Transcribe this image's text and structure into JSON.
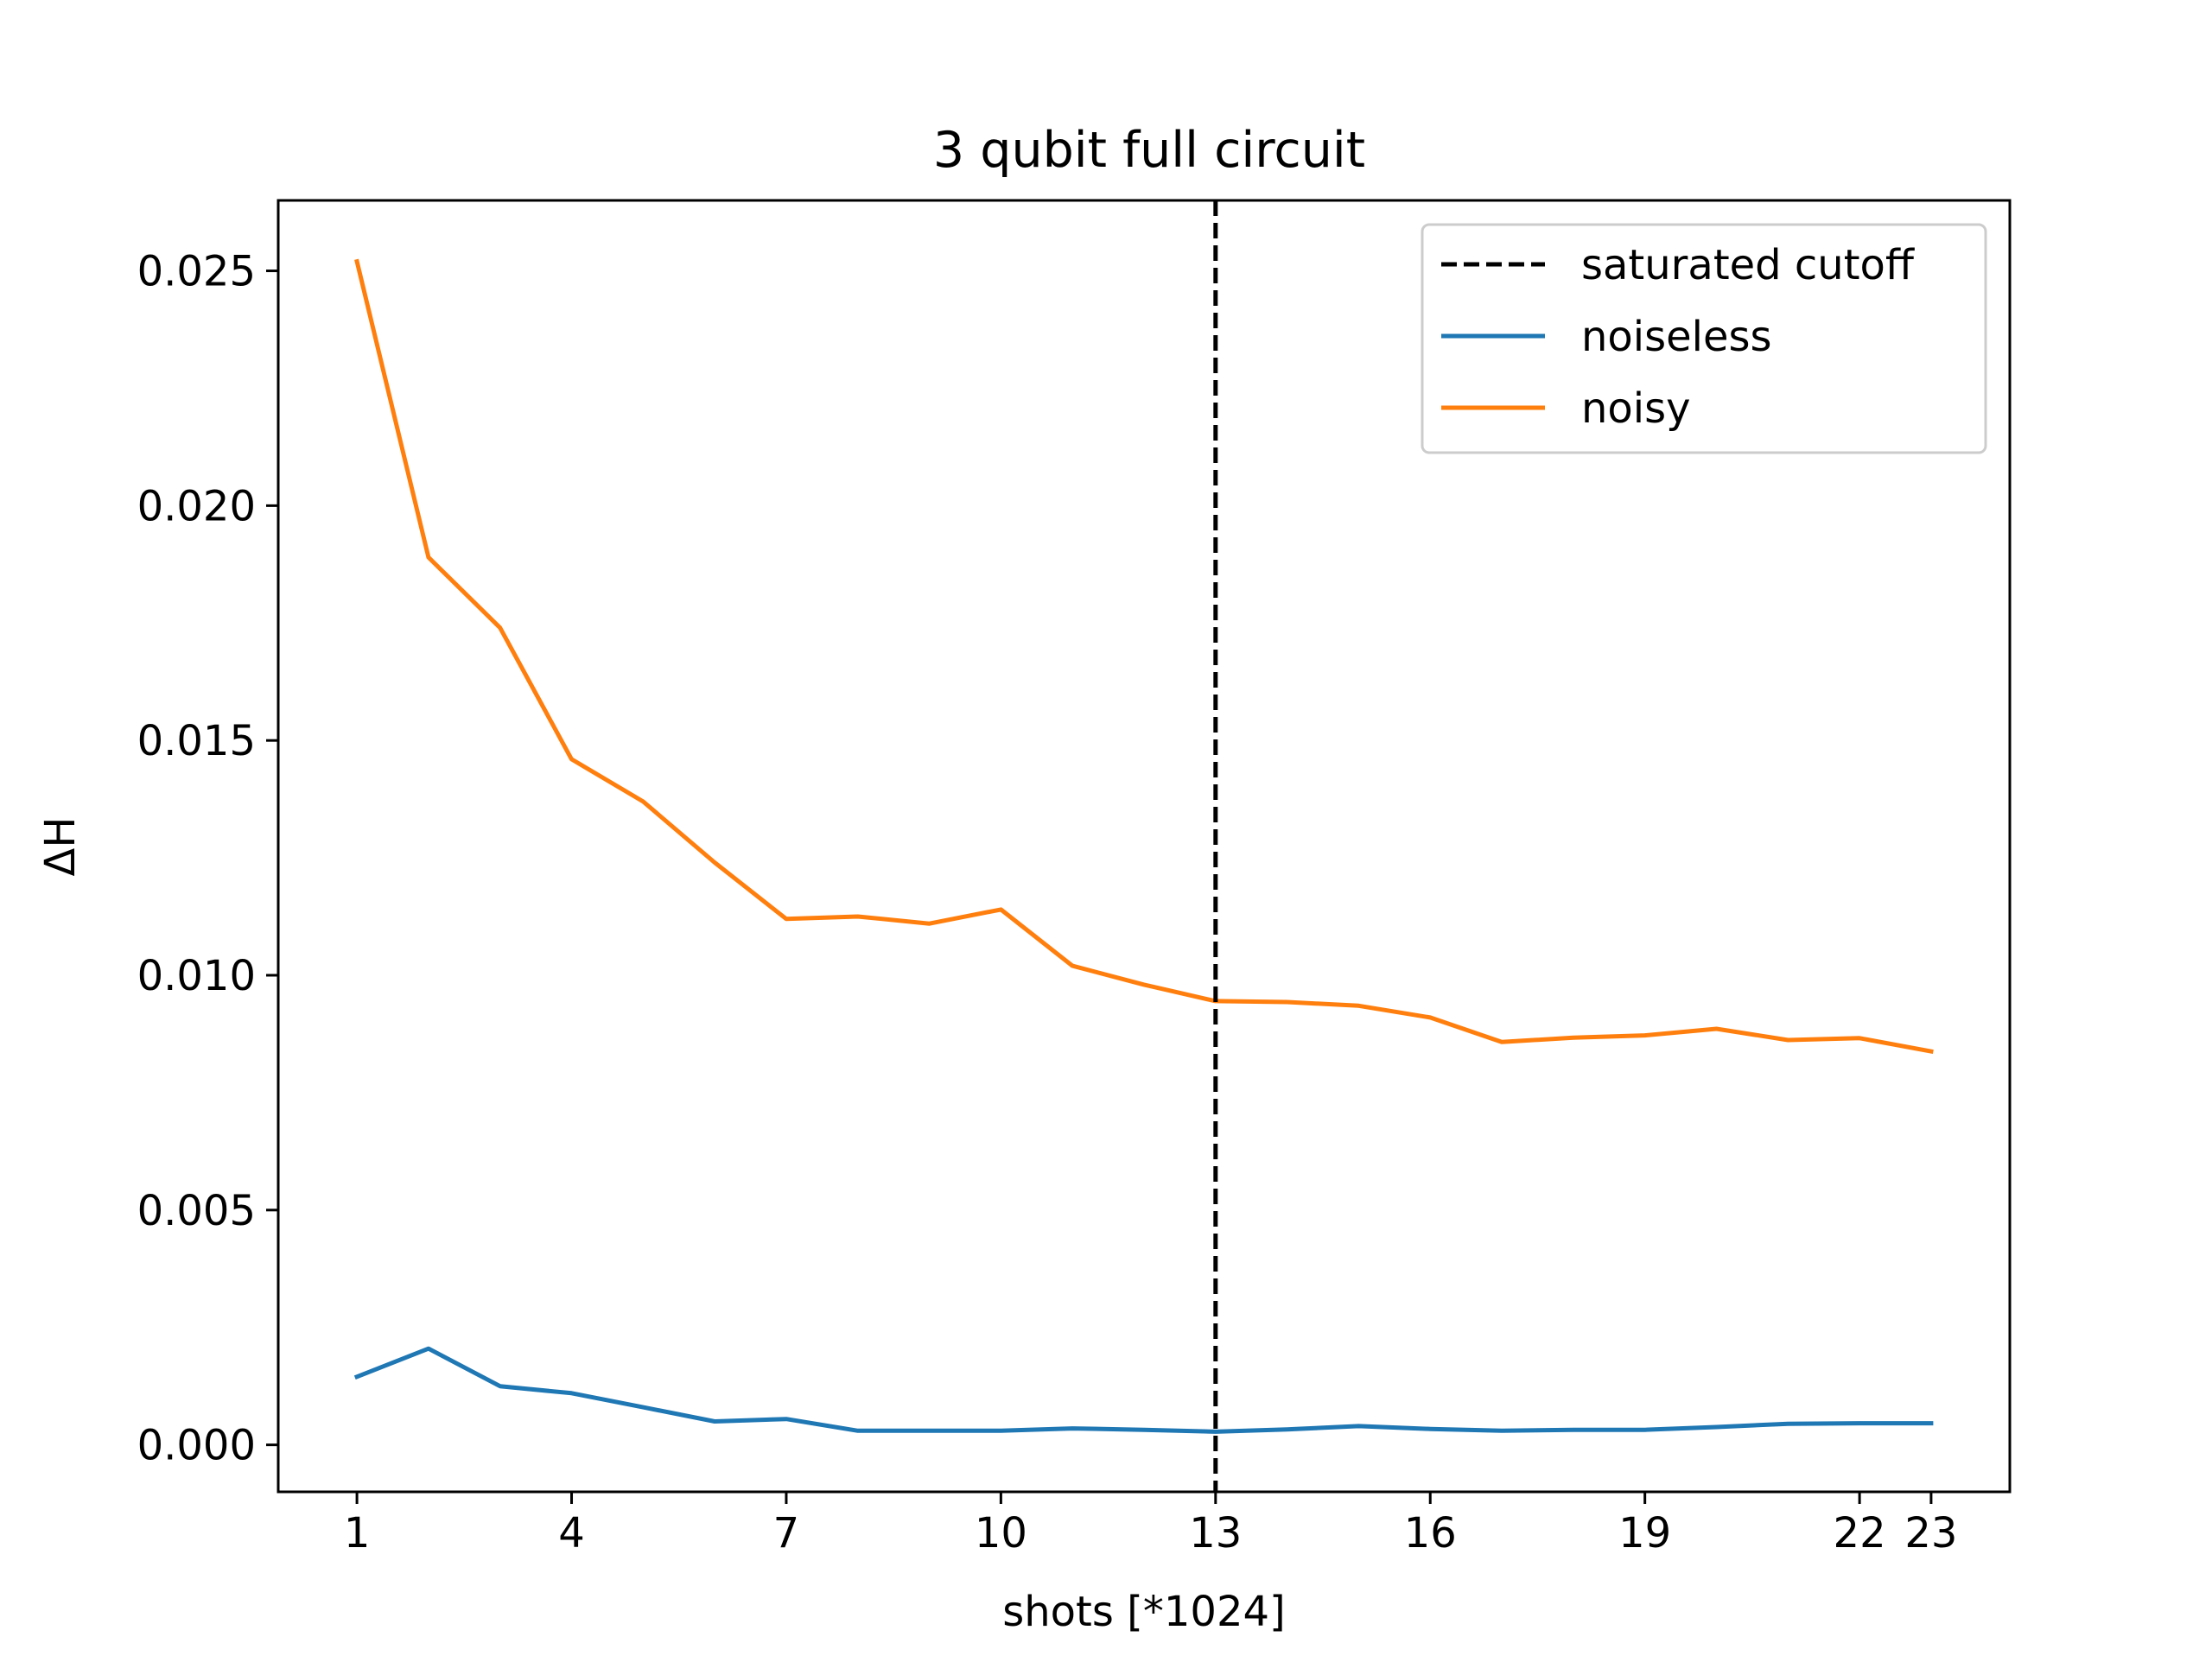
{
  "chart_data": {
    "type": "line",
    "title": "3 qubit full circuit",
    "xlabel": "shots [*1024]",
    "ylabel": "ΔH",
    "xlim": [
      -0.1,
      24.1
    ],
    "ylim": [
      -0.001,
      0.0265
    ],
    "xticks": [
      1,
      4,
      7,
      10,
      13,
      16,
      19,
      22,
      23
    ],
    "yticks": [
      0.0,
      0.005,
      0.01,
      0.015,
      0.02,
      0.025
    ],
    "ytick_labels": [
      "0.000",
      "0.005",
      "0.010",
      "0.015",
      "0.020",
      "0.025"
    ],
    "grid": false,
    "legend_position": "top-right",
    "x": [
      1,
      2,
      3,
      4,
      5,
      6,
      7,
      8,
      9,
      10,
      11,
      12,
      13,
      14,
      15,
      16,
      17,
      18,
      19,
      20,
      21,
      22,
      23
    ],
    "vline": {
      "name": "saturated cutoff",
      "x": 13,
      "color": "#000000",
      "style": "dashed"
    },
    "series": [
      {
        "name": "noiseless",
        "color": "#1f77b4",
        "values": [
          0.00145,
          0.00205,
          0.00125,
          0.0011,
          0.0008,
          0.0005,
          0.00055,
          0.0003,
          0.0003,
          0.0003,
          0.00035,
          0.00032,
          0.00028,
          0.00033,
          0.0004,
          0.00034,
          0.0003,
          0.00032,
          0.00032,
          0.00038,
          0.00045,
          0.00046,
          0.00046
        ]
      },
      {
        "name": "noisy",
        "color": "#ff7f0e",
        "values": [
          0.0252,
          0.0189,
          0.0174,
          0.0146,
          0.0137,
          0.0124,
          0.0112,
          0.01125,
          0.0111,
          0.0114,
          0.0102,
          0.0098,
          0.00945,
          0.00943,
          0.00935,
          0.0091,
          0.00858,
          0.00867,
          0.00872,
          0.00886,
          0.00862,
          0.00866,
          0.00838
        ]
      }
    ]
  }
}
